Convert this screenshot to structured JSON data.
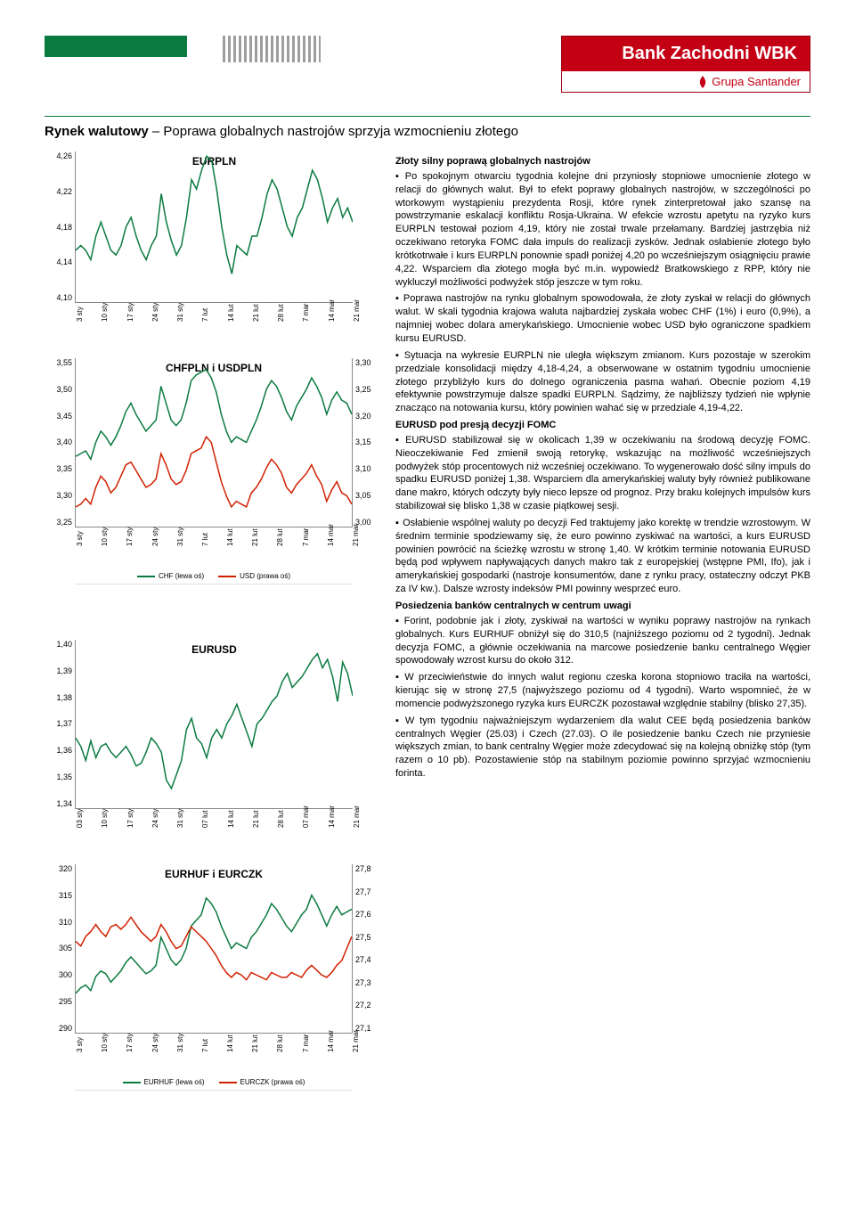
{
  "header": {
    "bank_name": "Bank Zachodni WBK",
    "group_name": "Grupa Santander",
    "brand_red": "#c40015",
    "green": "#0a7a3f"
  },
  "title_bold": "Rynek walutowy",
  "title_rest": " – Poprawa globalnych nastrojów sprzyja wzmocnieniu złotego",
  "x_labels": [
    "3 sty",
    "10 sty",
    "17 sty",
    "24 sty",
    "31 sty",
    "7 lut",
    "14 lut",
    "21 lut",
    "28 lut",
    "7 mar",
    "14 mar",
    "21 mar"
  ],
  "x_labels_03": [
    "03 sty",
    "10 sty",
    "17 sty",
    "24 sty",
    "31 sty",
    "07 lut",
    "14 lut",
    "21 lut",
    "28 lut",
    "07 mar",
    "14 mar",
    "21 mar"
  ],
  "eurpln": {
    "title": "EURPLN",
    "color": "#0a7a3f",
    "y_ticks": [
      "4,26",
      "4,22",
      "4,18",
      "4,14",
      "4,10"
    ],
    "ylim": [
      4.1,
      4.26
    ],
    "data": [
      4.155,
      4.16,
      4.155,
      4.145,
      4.17,
      4.185,
      4.17,
      4.155,
      4.15,
      4.16,
      4.18,
      4.19,
      4.17,
      4.155,
      4.145,
      4.16,
      4.17,
      4.215,
      4.185,
      4.165,
      4.15,
      4.16,
      4.19,
      4.23,
      4.22,
      4.24,
      4.255,
      4.25,
      4.22,
      4.18,
      4.15,
      4.13,
      4.16,
      4.155,
      4.15,
      4.17,
      4.17,
      4.19,
      4.215,
      4.23,
      4.22,
      4.2,
      4.18,
      4.17,
      4.19,
      4.2,
      4.22,
      4.24,
      4.23,
      4.21,
      4.185,
      4.2,
      4.21,
      4.19,
      4.2,
      4.185
    ]
  },
  "chfpln_usdpln": {
    "title": "CHFPLN i USDPLN",
    "y_ticks_left": [
      "3,55",
      "3,50",
      "3,45",
      "3,40",
      "3,35",
      "3,30",
      "3,25"
    ],
    "y_ticks_right": [
      "3,30",
      "3,25",
      "3,20",
      "3,15",
      "3,10",
      "3,05",
      "3,00"
    ],
    "chf": {
      "label": "CHF (lewa oś)",
      "color": "#0a7a3f",
      "ylim": [
        3.25,
        3.55
      ],
      "data": [
        3.375,
        3.38,
        3.385,
        3.37,
        3.4,
        3.42,
        3.41,
        3.395,
        3.41,
        3.43,
        3.455,
        3.47,
        3.45,
        3.435,
        3.42,
        3.43,
        3.44,
        3.5,
        3.47,
        3.44,
        3.43,
        3.44,
        3.47,
        3.51,
        3.52,
        3.525,
        3.53,
        3.515,
        3.49,
        3.45,
        3.42,
        3.4,
        3.41,
        3.405,
        3.4,
        3.42,
        3.44,
        3.465,
        3.495,
        3.51,
        3.5,
        3.48,
        3.455,
        3.44,
        3.465,
        3.48,
        3.495,
        3.515,
        3.5,
        3.48,
        3.45,
        3.475,
        3.49,
        3.475,
        3.47,
        3.45
      ]
    },
    "usd": {
      "label": "USD (prawa oś)",
      "color": "#d02000",
      "ylim": [
        3.0,
        3.3
      ],
      "data": [
        3.035,
        3.04,
        3.05,
        3.04,
        3.07,
        3.09,
        3.08,
        3.06,
        3.07,
        3.09,
        3.11,
        3.115,
        3.1,
        3.085,
        3.07,
        3.075,
        3.085,
        3.13,
        3.11,
        3.085,
        3.075,
        3.08,
        3.1,
        3.13,
        3.135,
        3.14,
        3.16,
        3.15,
        3.115,
        3.08,
        3.055,
        3.035,
        3.045,
        3.04,
        3.035,
        3.06,
        3.07,
        3.085,
        3.105,
        3.12,
        3.11,
        3.095,
        3.07,
        3.06,
        3.075,
        3.085,
        3.095,
        3.11,
        3.09,
        3.075,
        3.045,
        3.065,
        3.08,
        3.06,
        3.055,
        3.04
      ]
    }
  },
  "eurusd": {
    "title": "EURUSD",
    "color": "#0a7a3f",
    "y_ticks": [
      "1,40",
      "1,39",
      "1,38",
      "1,37",
      "1,36",
      "1,35",
      "1,34"
    ],
    "ylim": [
      1.34,
      1.4
    ],
    "data": [
      1.365,
      1.362,
      1.357,
      1.364,
      1.358,
      1.362,
      1.363,
      1.36,
      1.358,
      1.36,
      1.362,
      1.359,
      1.355,
      1.356,
      1.36,
      1.365,
      1.363,
      1.36,
      1.35,
      1.347,
      1.352,
      1.357,
      1.368,
      1.372,
      1.365,
      1.363,
      1.358,
      1.365,
      1.368,
      1.365,
      1.37,
      1.373,
      1.377,
      1.372,
      1.367,
      1.362,
      1.37,
      1.372,
      1.375,
      1.378,
      1.38,
      1.385,
      1.388,
      1.383,
      1.385,
      1.387,
      1.39,
      1.393,
      1.395,
      1.39,
      1.393,
      1.387,
      1.378,
      1.392,
      1.388,
      1.38
    ]
  },
  "eurhuf_eurczk": {
    "title": "EURHUF i EURCZK",
    "y_ticks_left": [
      "320",
      "315",
      "310",
      "305",
      "300",
      "295",
      "290"
    ],
    "y_ticks_right": [
      "27,8",
      "27,7",
      "27,6",
      "27,5",
      "27,4",
      "27,3",
      "27,2",
      "27,1"
    ],
    "huf": {
      "label": "EURHUF (lewa oś)",
      "color": "#0a7a3f",
      "ylim": [
        290,
        320
      ],
      "data": [
        297,
        298,
        298.5,
        297.5,
        300,
        301,
        300.5,
        299,
        300,
        301,
        302.5,
        303.5,
        302.5,
        301.5,
        300.5,
        301,
        302,
        307,
        305,
        303,
        302,
        303,
        305,
        309,
        310,
        311,
        314,
        313,
        311.5,
        309,
        307,
        305,
        306,
        305.5,
        305,
        307,
        308,
        309.5,
        311,
        313,
        312,
        310.5,
        309,
        308,
        309.5,
        311,
        312,
        314.5,
        313,
        311,
        309,
        311,
        312.5,
        311,
        311.5,
        312
      ]
    },
    "czk": {
      "label": "EURCZK (prawa oś)",
      "color": "#d02000",
      "ylim": [
        27.1,
        27.8
      ],
      "data": [
        27.48,
        27.46,
        27.5,
        27.52,
        27.55,
        27.52,
        27.5,
        27.54,
        27.55,
        27.53,
        27.55,
        27.58,
        27.55,
        27.52,
        27.5,
        27.48,
        27.5,
        27.55,
        27.52,
        27.48,
        27.45,
        27.46,
        27.5,
        27.54,
        27.52,
        27.5,
        27.48,
        27.45,
        27.42,
        27.38,
        27.35,
        27.33,
        27.35,
        27.34,
        27.32,
        27.35,
        27.34,
        27.33,
        27.32,
        27.35,
        27.34,
        27.33,
        27.33,
        27.35,
        27.34,
        27.33,
        27.36,
        27.38,
        27.36,
        27.34,
        27.33,
        27.35,
        27.38,
        27.4,
        27.45,
        27.5
      ]
    }
  },
  "text": {
    "h1": "Złoty silny poprawą globalnych nastrojów",
    "p1": "Po spokojnym otwarciu tygodnia kolejne dni przyniosły stopniowe umocnienie złotego w relacji do głównych walut. Był to efekt poprawy globalnych nastrojów, w szczególności po wtorkowym wystąpieniu prezydenta Rosji, które rynek zinterpretował jako szansę na powstrzymanie eskalacji konfliktu Rosja-Ukraina. W efekcie wzrostu apetytu na ryzyko kurs EURPLN testował poziom 4,19, który nie został trwale przełamany. Bardziej jastrzębia niż oczekiwano retoryka FOMC dała impuls do realizacji zysków. Jednak osłabienie złotego było krótkotrwałe i kurs EURPLN ponownie spadł poniżej 4,20 po wcześniejszym osiągnięciu prawie 4,22. Wsparciem dla złotego mogła być m.in. wypowiedź Bratkowskiego z RPP, który nie wykluczył możliwości podwyżek stóp jeszcze w tym roku.",
    "p2": "Poprawa nastrojów na rynku globalnym spowodowała, że złoty zyskał w relacji do głównych walut. W skali tygodnia krajowa waluta najbardziej zyskała wobec CHF (1%) i euro (0,9%), a najmniej wobec dolara amerykańskiego. Umocnienie wobec USD było ograniczone spadkiem kursu EURUSD.",
    "p3": "Sytuacja na wykresie EURPLN nie uległa większym zmianom. Kurs pozostaje w szerokim przedziale konsolidacji między 4,18-4,24, a obserwowane w ostatnim tygodniu umocnienie złotego przybliżyło kurs do dolnego ograniczenia pasma wahań. Obecnie poziom 4,19 efektywnie powstrzymuje dalsze spadki EURPLN. Sądzimy, że najbliższy tydzień nie wpłynie znacząco na notowania kursu, który powinien wahać się w przedziale 4,19-4,22.",
    "h2": "EURUSD pod presją decyzji FOMC",
    "p4": "EURUSD stabilizował się w okolicach 1,39 w oczekiwaniu na środową decyzję FOMC. Nieoczekiwanie Fed zmienił swoją retorykę, wskazując na możliwość wcześniejszych podwyżek stóp procentowych niż wcześniej oczekiwano. To wygenerowało dość silny impuls do spadku EURUSD poniżej 1,38. Wsparciem dla amerykańskiej waluty były również publikowane dane makro, których odczyty były nieco lepsze od prognoz. Przy braku kolejnych impulsów kurs stabilizował się blisko 1,38 w czasie piątkowej sesji.",
    "p5": "Osłabienie wspólnej waluty po decyzji Fed traktujemy jako korektę w trendzie wzrostowym. W średnim terminie spodziewamy się, że euro powinno zyskiwać na wartości, a kurs EURUSD powinien powrócić na ścieżkę wzrostu w stronę 1,40. W krótkim terminie notowania EURUSD będą pod wpływem napływających danych makro tak z europejskiej (wstępne PMI, Ifo), jak i amerykańskiej gospodarki (nastroje konsumentów, dane z rynku pracy, ostateczny odczyt PKB za IV kw.). Dalsze wzrosty indeksów PMI powinny wesprzeć euro.",
    "h3": "Posiedzenia banków centralnych w centrum uwagi",
    "p6": "Forint, podobnie jak i złoty, zyskiwał na wartości w wyniku poprawy nastrojów na rynkach globalnych. Kurs EURHUF obniżył się do 310,5 (najniższego poziomu od 2 tygodni). Jednak decyzja FOMC, a głównie oczekiwania na marcowe posiedzenie banku centralnego Węgier spowodowały wzrost kursu do około 312.",
    "p7": "W przeciwieństwie do innych walut regionu czeska korona stopniowo traciła na wartości, kierując się w stronę 27,5 (najwyższego poziomu od 4 tygodni). Warto wspomnieć, że w momencie podwyższonego ryzyka kurs EURCZK pozostawał względnie stabilny (blisko 27,35).",
    "p8": "W tym tygodniu najważniejszym wydarzeniem dla walut CEE będą posiedzenia banków centralnych Węgier (25.03) i Czech (27.03). O ile posiedzenie banku Czech nie przyniesie większych zmian, to bank centralny Węgier może zdecydować się na kolejną obniżkę stóp (tym razem o 10 pb). Pozostawienie stóp na stabilnym poziomie powinno sprzyjać wzmocnieniu forinta."
  }
}
